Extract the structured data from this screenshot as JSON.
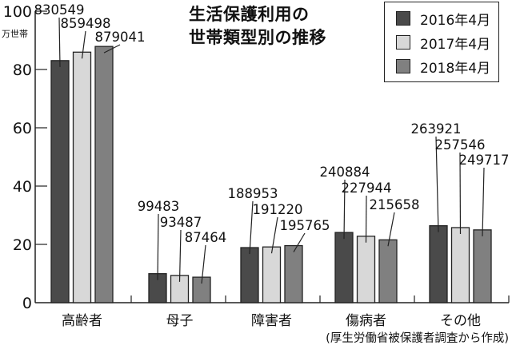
{
  "title_line1": "生活保護利用の",
  "title_line2": "世帯類型別の推移",
  "unit_label": "万世帯",
  "source_note": "(厚生労働省被保護者調査から作成)",
  "legend": [
    {
      "label": "2016年4月",
      "color": "#4a4a4a"
    },
    {
      "label": "2017年4月",
      "color": "#d8d8d8"
    },
    {
      "label": "2018年4月",
      "color": "#808080"
    }
  ],
  "chart_data": {
    "type": "bar",
    "title": "生活保護利用の世帯類型別の推移",
    "xlabel": "",
    "ylabel": "万世帯",
    "ylim": [
      0,
      100
    ],
    "yticks": [
      0,
      20,
      40,
      60,
      80,
      100
    ],
    "grid": false,
    "legend_position": "top-right",
    "categories": [
      "高齢者",
      "母子",
      "障害者",
      "傷病者",
      "その他"
    ],
    "series": [
      {
        "name": "2016年4月",
        "values": [
          830549,
          99483,
          188953,
          240884,
          263921
        ]
      },
      {
        "name": "2017年4月",
        "values": [
          859498,
          93487,
          191220,
          227944,
          257546
        ]
      },
      {
        "name": "2018年4月",
        "values": [
          879041,
          87464,
          195765,
          215658,
          249717
        ]
      }
    ],
    "annotation": "(厚生労働省被保護者調査から作成)"
  }
}
